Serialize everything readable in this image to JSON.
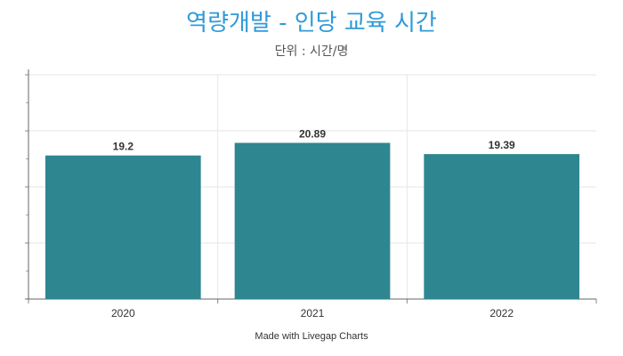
{
  "chart_data": {
    "type": "bar",
    "title": "역량개발 - 인당 교육 시간",
    "subtitle": "단위 : 시간/명",
    "categories": [
      "2020",
      "2021",
      "2022"
    ],
    "values": [
      19.2,
      20.89,
      19.39
    ],
    "data_labels": [
      "19.2",
      "20.89",
      "19.39"
    ],
    "ylim": [
      0,
      30
    ],
    "grid": true,
    "bar_color": "#2e8691"
  },
  "credit": "Made with Livegap Charts"
}
